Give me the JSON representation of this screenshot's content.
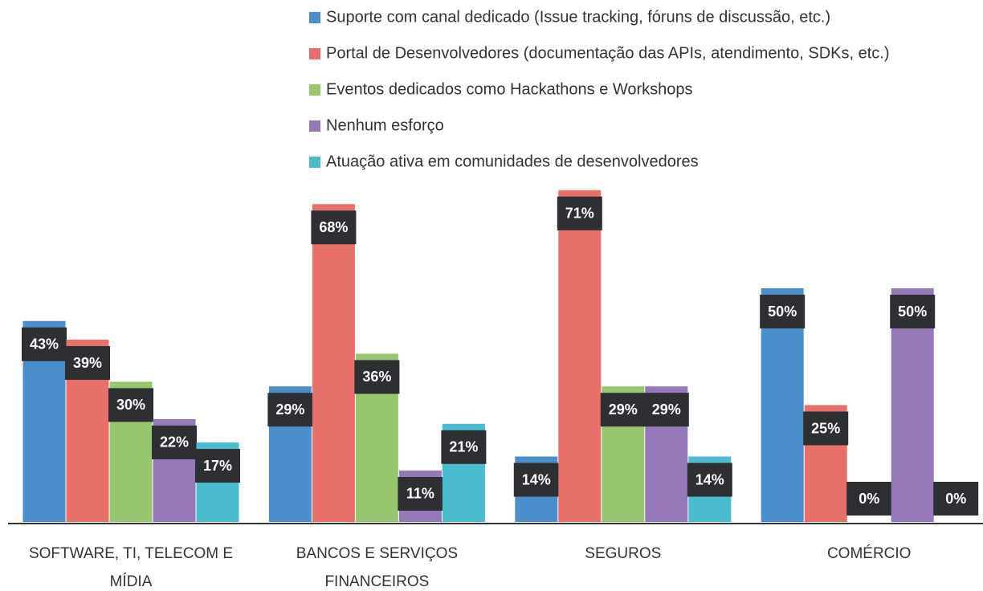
{
  "chart_data": {
    "type": "bar",
    "categories": [
      "SOFTWARE, TI, TELECOM E MÍDIA",
      "BANCOS E SERVIÇOS FINANCEIROS",
      "SEGUROS",
      "COMÉRCIO"
    ],
    "series": [
      {
        "name": "Suporte com canal dedicado (Issue tracking, fóruns de discussão, etc.)",
        "color": "#4a8fcc",
        "values": [
          43,
          29,
          14,
          50
        ],
        "value_labels": [
          "43%",
          "29%",
          "14%",
          "50%"
        ]
      },
      {
        "name": "Portal de Desenvolvedores (documentação das APIs, atendimento, SDKs, etc.)",
        "color": "#e8706a",
        "values": [
          39,
          68,
          71,
          25
        ],
        "value_labels": [
          "39%",
          "68%",
          "71%",
          "25%"
        ]
      },
      {
        "name": "Eventos dedicados como Hackathons e Workshops",
        "color": "#97c66e",
        "values": [
          30,
          36,
          29,
          0
        ],
        "value_labels": [
          "30%",
          "36%",
          "29%",
          "0%"
        ]
      },
      {
        "name": "Nenhum esforço",
        "color": "#9478b8",
        "values": [
          22,
          11,
          29,
          50
        ],
        "value_labels": [
          "22%",
          "11%",
          "29%",
          "50%"
        ]
      },
      {
        "name": "Atuação ativa em comunidades de desenvolvedores",
        "color": "#4bbcce",
        "values": [
          17,
          21,
          14,
          0
        ],
        "value_labels": [
          "17%",
          "21%",
          "14%",
          "0%"
        ]
      }
    ],
    "legend": "top"
  }
}
